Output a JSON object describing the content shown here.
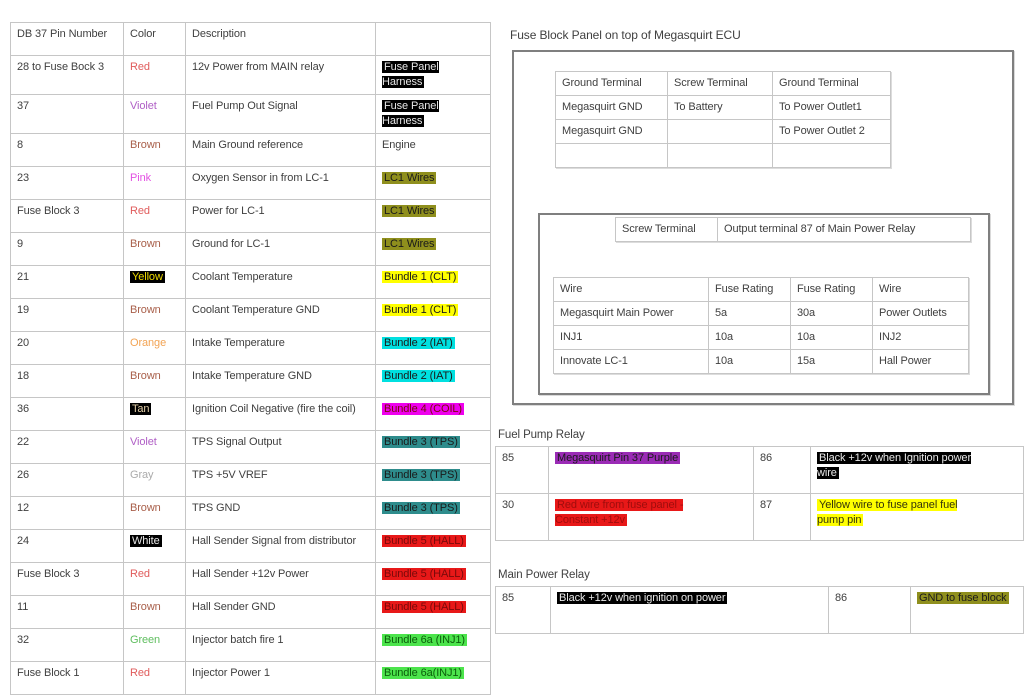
{
  "colors": {
    "fg": {
      "default": "#3f3f3f",
      "red": "#e05c5c",
      "violet": "#b05fc6",
      "brown": "#a9604b",
      "pink": "#e352e3",
      "orange": "#f2a353",
      "gray": "#ababab",
      "green": "#5fbe5f",
      "yellow": "#f0dc00",
      "tan": "#e3cfa8",
      "white": "#e8e8e8",
      "ink": "#1a1a1a",
      "darkred": "#7a0a0a",
      "darkred2": "#a00d0d",
      "darkgreen": "#0b5d0b",
      "oliveink": "#33330a"
    },
    "bg": {
      "black": "#000000",
      "olive": "#8f8f1d",
      "yellow": "#ffff00",
      "cyan": "#00e0e0",
      "magenta": "#ee00ee",
      "teal": "#2e8c8c",
      "red": "#e81818",
      "green": "#4ce44c",
      "purple": "#9a2bb5"
    }
  },
  "pin_table": {
    "headers": [
      "DB 37 Pin Number",
      "Color",
      "Description",
      ""
    ],
    "rows": [
      {
        "pin": "28 to Fuse Bock 3",
        "color": {
          "label": "Red",
          "fg": "red"
        },
        "desc": "12v Power from MAIN relay",
        "tag": {
          "label": "Fuse Panel\nHarness",
          "fg": "white",
          "bg": "black"
        }
      },
      {
        "pin": "37",
        "color": {
          "label": "Violet",
          "fg": "violet"
        },
        "desc": "Fuel Pump Out Signal",
        "tag": {
          "label": "Fuse Panel\nHarness",
          "fg": "white",
          "bg": "black"
        }
      },
      {
        "pin": "8",
        "color": {
          "label": "Brown",
          "fg": "brown"
        },
        "desc": "Main Ground reference",
        "tag": {
          "label": "Engine",
          "fg": "default"
        }
      },
      {
        "pin": "23",
        "color": {
          "label": "Pink",
          "fg": "pink"
        },
        "desc": "Oxygen Sensor in from LC-1",
        "tag": {
          "label": "LC1 Wires",
          "fg": "ink",
          "bg": "olive"
        }
      },
      {
        "pin": "Fuse Block 3",
        "color": {
          "label": "Red",
          "fg": "red"
        },
        "desc": "Power for LC-1",
        "tag": {
          "label": "LC1 Wires",
          "fg": "ink",
          "bg": "olive"
        }
      },
      {
        "pin": "9",
        "color": {
          "label": "Brown",
          "fg": "brown"
        },
        "desc": "Ground for LC-1",
        "tag": {
          "label": "LC1 Wires",
          "fg": "ink",
          "bg": "olive"
        }
      },
      {
        "pin": "21",
        "color": {
          "label": "Yellow",
          "fg": "yellow",
          "bg": "black"
        },
        "desc": "Coolant Temperature",
        "tag": {
          "label": "Bundle 1 (CLT)",
          "fg": "ink",
          "bg": "yellow"
        }
      },
      {
        "pin": "19",
        "color": {
          "label": "Brown",
          "fg": "brown"
        },
        "desc": "Coolant Temperature GND",
        "tag": {
          "label": "Bundle 1 (CLT)",
          "fg": "ink",
          "bg": "yellow"
        }
      },
      {
        "pin": "20",
        "color": {
          "label": "Orange",
          "fg": "orange"
        },
        "desc": "Intake Temperature",
        "tag": {
          "label": "Bundle 2 (IAT)",
          "fg": "ink",
          "bg": "cyan"
        }
      },
      {
        "pin": "18",
        "color": {
          "label": "Brown",
          "fg": "brown"
        },
        "desc": "Intake Temperature GND",
        "tag": {
          "label": "Bundle 2 (IAT)",
          "fg": "ink",
          "bg": "cyan"
        }
      },
      {
        "pin": "36",
        "color": {
          "label": "Tan",
          "fg": "tan",
          "bg": "black"
        },
        "desc": "Ignition Coil Negative (fire the coil)",
        "tag": {
          "label": "Bundle 4 (COIL)",
          "fg": "darkred",
          "bg": "magenta"
        }
      },
      {
        "pin": "22",
        "color": {
          "label": "Violet",
          "fg": "violet"
        },
        "desc": "TPS Signal Output",
        "tag": {
          "label": "Bundle 3 (TPS)",
          "fg": "ink",
          "bg": "teal"
        }
      },
      {
        "pin": "26",
        "color": {
          "label": "Gray",
          "fg": "gray"
        },
        "desc": "TPS +5V VREF",
        "tag": {
          "label": "Bundle 3 (TPS)",
          "fg": "ink",
          "bg": "teal"
        }
      },
      {
        "pin": "12",
        "color": {
          "label": "Brown",
          "fg": "brown"
        },
        "desc": "TPS GND",
        "tag": {
          "label": "Bundle 3 (TPS)",
          "fg": "ink",
          "bg": "teal"
        }
      },
      {
        "pin": "24",
        "color": {
          "label": "White",
          "fg": "white",
          "bg": "black"
        },
        "desc": "Hall Sender Signal from distributor",
        "tag": {
          "label": "Bundle 5 (HALL)",
          "fg": "darkred",
          "bg": "red"
        }
      },
      {
        "pin": "Fuse Block 3",
        "color": {
          "label": "Red",
          "fg": "red"
        },
        "desc": "Hall Sender +12v Power",
        "tag": {
          "label": "Bundle 5 (HALL)",
          "fg": "darkred",
          "bg": "red"
        }
      },
      {
        "pin": "11",
        "color": {
          "label": "Brown",
          "fg": "brown"
        },
        "desc": "Hall Sender GND",
        "tag": {
          "label": "Bundle 5 (HALL)",
          "fg": "darkred",
          "bg": "red"
        }
      },
      {
        "pin": "32",
        "color": {
          "label": "Green",
          "fg": "green"
        },
        "desc": "Injector batch fire 1",
        "tag": {
          "label": "Bundle 6a (INJ1)",
          "fg": "darkgreen",
          "bg": "green"
        }
      },
      {
        "pin": "Fuse Block 1",
        "color": {
          "label": "Red",
          "fg": "red"
        },
        "desc": "Injector Power 1",
        "tag": {
          "label": "Bundle 6a(INJ1)",
          "fg": "darkgreen",
          "bg": "green"
        }
      }
    ]
  },
  "fuse_panel": {
    "title": "Fuse Block Panel on top of Megasquirt ECU",
    "ground_table": {
      "headers": [
        "Ground Terminal",
        "Screw Terminal",
        "Ground Terminal"
      ],
      "rows": [
        [
          "Megasquirt GND",
          "To Battery",
          "To Power Outlet1"
        ],
        [
          "Megasquirt GND",
          "",
          "To Power Outlet 2"
        ],
        [
          "",
          "",
          ""
        ]
      ]
    },
    "screw_strip": {
      "headers": [
        "Screw Terminal",
        "Output terminal 87 of Main Power Relay"
      ],
      "rows": []
    },
    "fuse_table": {
      "headers": [
        "Wire",
        "Fuse Rating",
        "Fuse Rating",
        "Wire"
      ],
      "rows": [
        [
          "Megasquirt Main Power",
          "5a",
          "30a",
          "Power Outlets"
        ],
        [
          "INJ1",
          "10a",
          "10a",
          "INJ2"
        ],
        [
          "Innovate LC-1",
          "10a",
          "15a",
          "Hall Power"
        ]
      ]
    }
  },
  "fuel_pump_relay": {
    "title": "Fuel Pump Relay",
    "rows": [
      [
        {
          "num": "85",
          "text": "Megasquirt Pin 37 Purple",
          "fg": "ink",
          "bg": "purple"
        },
        {
          "num": "86",
          "text": "Black +12v when Ignition power\nwire",
          "fg": "white",
          "bg": "black"
        }
      ],
      [
        {
          "num": "30",
          "text": "Red wire from fuse panel -\nConstant +12v",
          "fg": "darkred2",
          "bg": "red"
        },
        {
          "num": "87",
          "text": "Yellow wire to fuse panel fuel\npump pin",
          "fg": "oliveink",
          "bg": "yellow"
        }
      ]
    ]
  },
  "main_power_relay": {
    "title": "Main Power Relay",
    "rows": [
      [
        {
          "num": "85",
          "text": "Black +12v when ignition on power",
          "fg": "white",
          "bg": "black"
        },
        {
          "num": "86",
          "text": "GND to fuse block",
          "fg": "ink",
          "bg": "olive"
        }
      ]
    ]
  }
}
